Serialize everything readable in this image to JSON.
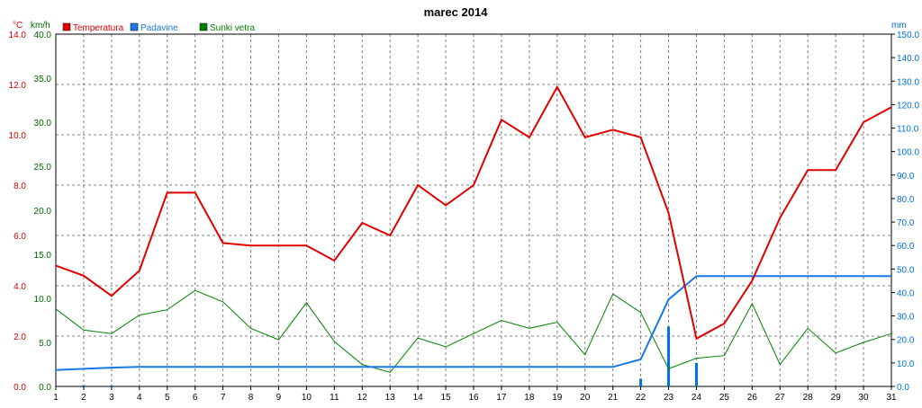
{
  "chart_data": {
    "type": "line",
    "title": "marec 2014",
    "x": [
      1,
      2,
      3,
      4,
      5,
      6,
      7,
      8,
      9,
      10,
      11,
      12,
      13,
      14,
      15,
      16,
      17,
      18,
      19,
      20,
      21,
      22,
      23,
      24,
      25,
      26,
      27,
      28,
      29,
      30,
      31
    ],
    "axes": {
      "temperature": {
        "unit": "°C",
        "range": [
          0,
          14
        ],
        "ticks": [
          "0.0",
          "2.0",
          "4.0",
          "6.0",
          "8.0",
          "10.0",
          "12.0",
          "14.0"
        ],
        "color": "#e00000"
      },
      "wind": {
        "unit": "km/h",
        "range": [
          0,
          40
        ],
        "ticks": [
          "0.0",
          "5.0",
          "10.0",
          "15.0",
          "20.0",
          "25.0",
          "30.0",
          "35.0",
          "40.0"
        ],
        "color": "#006600"
      },
      "precipitation": {
        "unit": "mm",
        "range": [
          0,
          150
        ],
        "ticks": [
          "0.0",
          "10.0",
          "20.0",
          "30.0",
          "40.0",
          "50.0",
          "60.0",
          "70.0",
          "80.0",
          "90.0",
          "100.0",
          "110.0",
          "120.0",
          "130.0",
          "140.0",
          "150.0"
        ],
        "color": "#0070e0"
      }
    },
    "legend": [
      {
        "name": "Temperatura",
        "color": "#e00000"
      },
      {
        "name": "Padavine",
        "color": "#1878e8"
      },
      {
        "name": "Sunki vetra",
        "color": "#008000"
      }
    ],
    "series": [
      {
        "name": "Temperatura",
        "axis": "temperature",
        "color": "#e00000",
        "values": [
          4.8,
          4.4,
          3.6,
          4.6,
          7.7,
          7.7,
          5.7,
          5.6,
          5.6,
          5.6,
          5.0,
          6.5,
          6.0,
          8.0,
          7.2,
          8.0,
          10.6,
          9.9,
          11.9,
          9.9,
          10.2,
          9.9,
          6.9,
          1.9,
          2.5,
          4.2,
          6.7,
          8.6,
          8.6,
          10.5,
          11.1
        ]
      },
      {
        "name": "Sunki vetra",
        "axis": "wind",
        "color": "#008000",
        "values": [
          8.8,
          6.4,
          6.0,
          8.1,
          8.7,
          10.9,
          9.6,
          6.6,
          5.3,
          9.5,
          5.1,
          2.5,
          1.6,
          5.5,
          4.5,
          6.0,
          7.5,
          6.6,
          7.3,
          3.6,
          10.5,
          8.4,
          2.0,
          3.2,
          3.5,
          9.4,
          2.5,
          6.6,
          3.8,
          5.0,
          6.0
        ]
      },
      {
        "name": "Padavine",
        "axis": "precipitation",
        "color": "#1878e8",
        "cumulative": true,
        "values": [
          7.0,
          7.5,
          8.0,
          8.3,
          8.3,
          8.3,
          8.3,
          8.3,
          8.3,
          8.3,
          8.3,
          8.3,
          8.3,
          8.3,
          8.3,
          8.3,
          8.3,
          8.3,
          8.3,
          8.3,
          8.3,
          11.5,
          37.0,
          47.0,
          47.0,
          47.0,
          47.0,
          47.0,
          47.0,
          47.0,
          47.0
        ]
      }
    ],
    "daily_precipitation": [
      {
        "x": 2,
        "mm": 0.5
      },
      {
        "x": 3,
        "mm": 0.5
      },
      {
        "x": 22,
        "mm": 3.3
      },
      {
        "x": 23,
        "mm": 25.5
      },
      {
        "x": 24,
        "mm": 10.0
      }
    ],
    "grid": true
  }
}
